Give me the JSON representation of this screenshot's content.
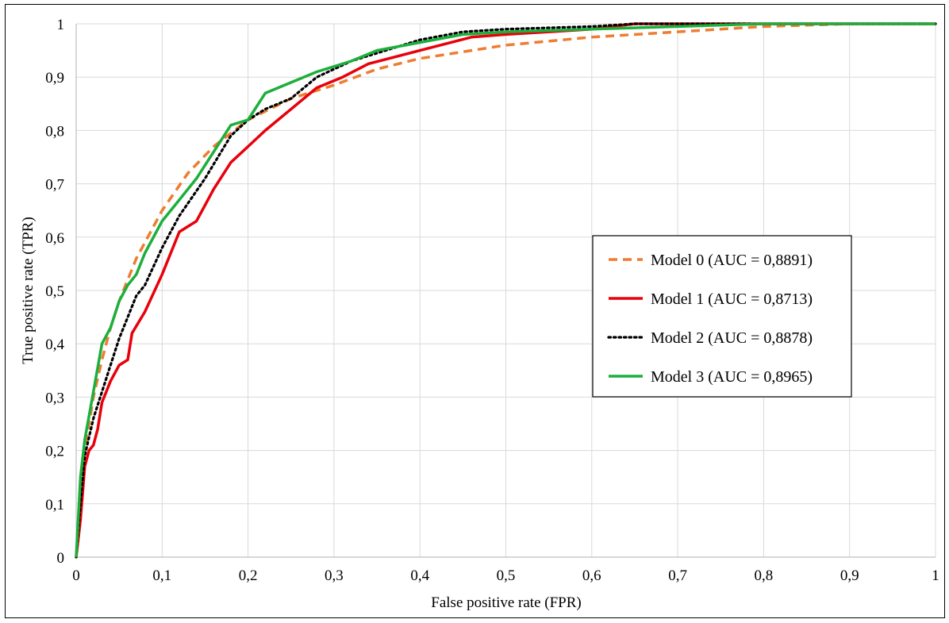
{
  "chart_data": {
    "type": "line",
    "title": "",
    "xlabel": "False positive rate (FPR)",
    "ylabel": "True positive rate (TPR)",
    "xlim": [
      0,
      1
    ],
    "ylim": [
      0,
      1
    ],
    "x_ticks": [
      "0",
      "0,1",
      "0,2",
      "0,3",
      "0,4",
      "0,5",
      "0,6",
      "0,7",
      "0,8",
      "0,9",
      "1"
    ],
    "y_ticks": [
      "0",
      "0,1",
      "0,2",
      "0,3",
      "0,4",
      "0,5",
      "0,6",
      "0,7",
      "0,8",
      "0,9",
      "1"
    ],
    "grid": true,
    "legend_position": "center-right",
    "series": [
      {
        "name": "Model 0 (AUC = 0,8891)",
        "color": "#ED7D31",
        "style": "dashed",
        "points": [
          [
            0,
            0
          ],
          [
            0.005,
            0.12
          ],
          [
            0.01,
            0.2
          ],
          [
            0.02,
            0.3
          ],
          [
            0.03,
            0.37
          ],
          [
            0.04,
            0.43
          ],
          [
            0.05,
            0.48
          ],
          [
            0.07,
            0.56
          ],
          [
            0.1,
            0.65
          ],
          [
            0.13,
            0.72
          ],
          [
            0.16,
            0.77
          ],
          [
            0.2,
            0.82
          ],
          [
            0.25,
            0.86
          ],
          [
            0.3,
            0.885
          ],
          [
            0.35,
            0.915
          ],
          [
            0.4,
            0.935
          ],
          [
            0.5,
            0.96
          ],
          [
            0.6,
            0.975
          ],
          [
            0.7,
            0.985
          ],
          [
            0.8,
            0.995
          ],
          [
            0.9,
            1
          ],
          [
            1,
            1
          ]
        ]
      },
      {
        "name": "Model 1 (AUC = 0,8713)",
        "color": "#E8000B",
        "style": "solid",
        "points": [
          [
            0,
            0
          ],
          [
            0.005,
            0.07
          ],
          [
            0.01,
            0.17
          ],
          [
            0.015,
            0.2
          ],
          [
            0.02,
            0.21
          ],
          [
            0.025,
            0.24
          ],
          [
            0.03,
            0.29
          ],
          [
            0.04,
            0.33
          ],
          [
            0.05,
            0.36
          ],
          [
            0.06,
            0.37
          ],
          [
            0.065,
            0.42
          ],
          [
            0.08,
            0.46
          ],
          [
            0.1,
            0.53
          ],
          [
            0.12,
            0.61
          ],
          [
            0.14,
            0.63
          ],
          [
            0.16,
            0.69
          ],
          [
            0.18,
            0.74
          ],
          [
            0.2,
            0.77
          ],
          [
            0.22,
            0.8
          ],
          [
            0.25,
            0.84
          ],
          [
            0.28,
            0.88
          ],
          [
            0.31,
            0.9
          ],
          [
            0.34,
            0.925
          ],
          [
            0.4,
            0.95
          ],
          [
            0.46,
            0.975
          ],
          [
            0.5,
            0.98
          ],
          [
            0.55,
            0.985
          ],
          [
            0.6,
            0.99
          ],
          [
            0.65,
            1
          ],
          [
            0.7,
            1
          ],
          [
            1,
            1
          ]
        ]
      },
      {
        "name": "Model 2 (AUC = 0,8878)",
        "color": "#000000",
        "style": "dotted",
        "points": [
          [
            0,
            0
          ],
          [
            0.005,
            0.1
          ],
          [
            0.01,
            0.19
          ],
          [
            0.02,
            0.26
          ],
          [
            0.03,
            0.31
          ],
          [
            0.04,
            0.36
          ],
          [
            0.05,
            0.41
          ],
          [
            0.06,
            0.45
          ],
          [
            0.07,
            0.49
          ],
          [
            0.08,
            0.51
          ],
          [
            0.1,
            0.58
          ],
          [
            0.12,
            0.64
          ],
          [
            0.15,
            0.71
          ],
          [
            0.18,
            0.79
          ],
          [
            0.2,
            0.82
          ],
          [
            0.22,
            0.84
          ],
          [
            0.25,
            0.86
          ],
          [
            0.28,
            0.9
          ],
          [
            0.32,
            0.93
          ],
          [
            0.36,
            0.95
          ],
          [
            0.4,
            0.97
          ],
          [
            0.45,
            0.985
          ],
          [
            0.5,
            0.99
          ],
          [
            0.6,
            0.995
          ],
          [
            0.65,
            1
          ],
          [
            1,
            1
          ]
        ]
      },
      {
        "name": "Model 3 (AUC = 0,8965)",
        "color": "#1CAF3C",
        "style": "solid",
        "points": [
          [
            0,
            0
          ],
          [
            0.005,
            0.15
          ],
          [
            0.01,
            0.22
          ],
          [
            0.02,
            0.31
          ],
          [
            0.03,
            0.4
          ],
          [
            0.04,
            0.43
          ],
          [
            0.05,
            0.48
          ],
          [
            0.06,
            0.51
          ],
          [
            0.07,
            0.53
          ],
          [
            0.08,
            0.57
          ],
          [
            0.1,
            0.63
          ],
          [
            0.12,
            0.67
          ],
          [
            0.14,
            0.71
          ],
          [
            0.16,
            0.76
          ],
          [
            0.18,
            0.81
          ],
          [
            0.2,
            0.82
          ],
          [
            0.22,
            0.87
          ],
          [
            0.25,
            0.89
          ],
          [
            0.28,
            0.91
          ],
          [
            0.32,
            0.93
          ],
          [
            0.35,
            0.95
          ],
          [
            0.4,
            0.965
          ],
          [
            0.45,
            0.98
          ],
          [
            0.5,
            0.985
          ],
          [
            0.6,
            0.99
          ],
          [
            0.7,
            0.995
          ],
          [
            0.8,
            1
          ],
          [
            1,
            1
          ]
        ]
      }
    ]
  }
}
